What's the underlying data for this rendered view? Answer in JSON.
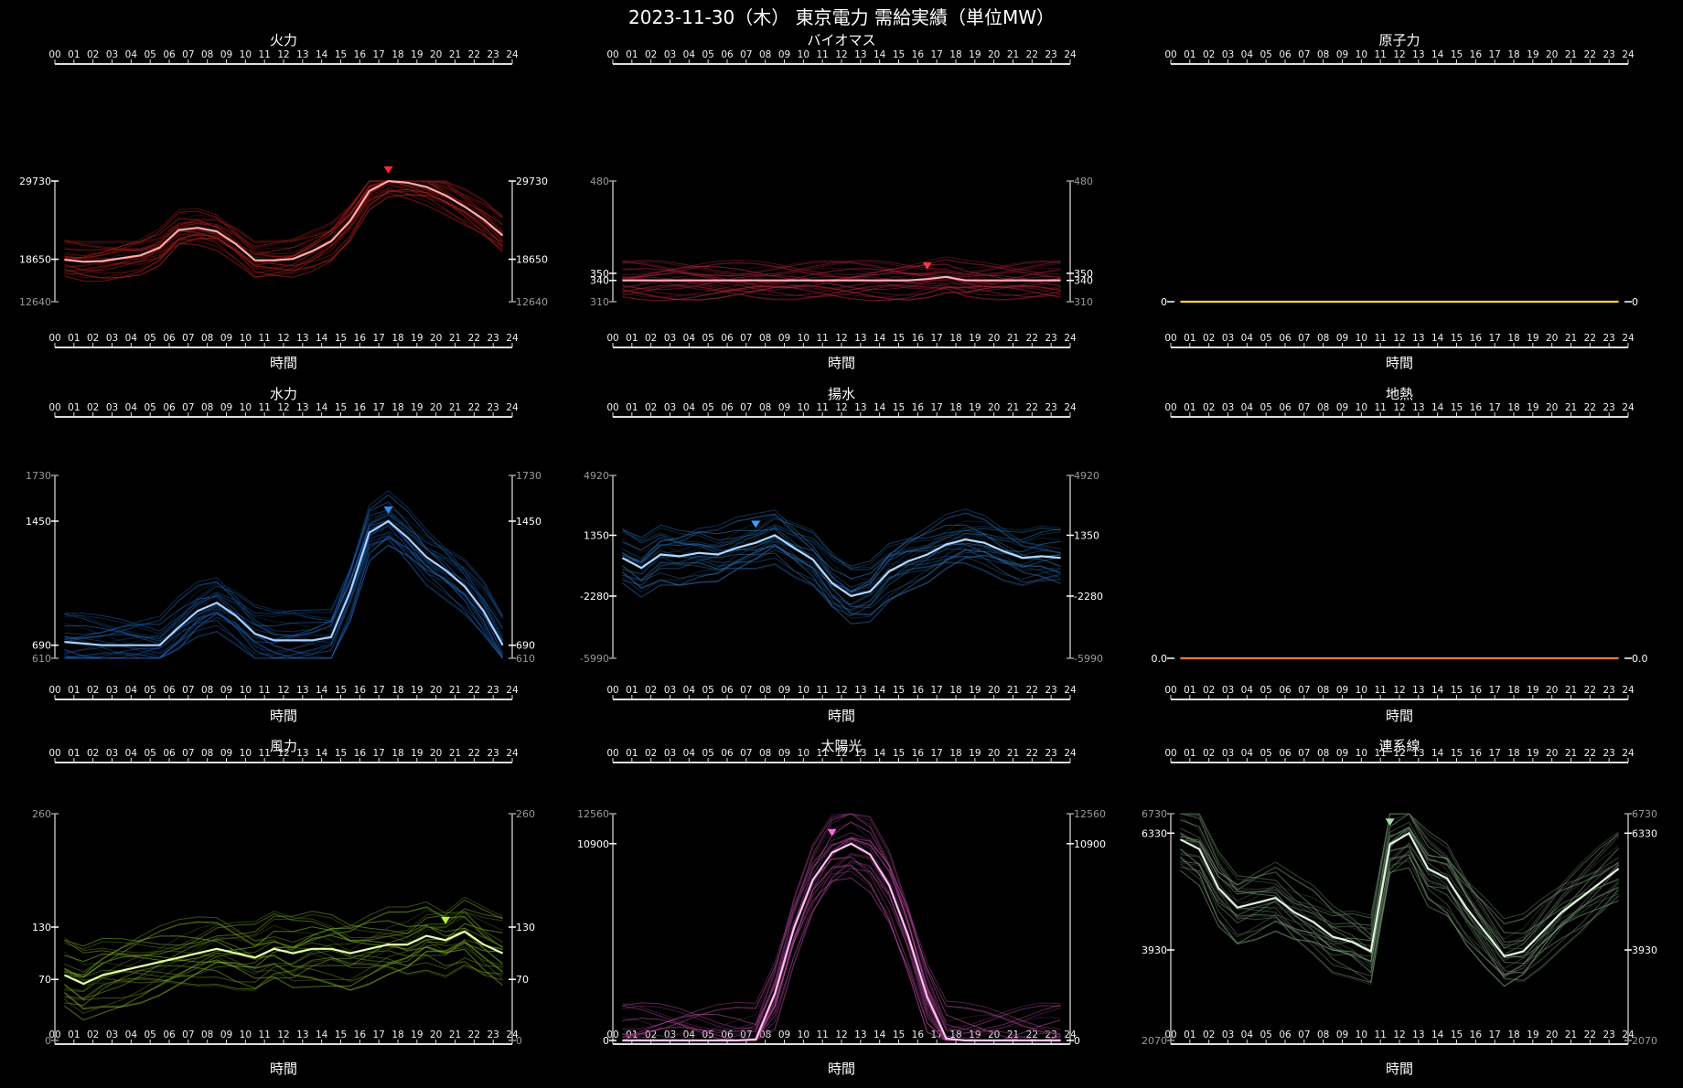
{
  "title": "2023-11-30（木） 東京電力 需給実績（単位MW）",
  "hours": [
    "00",
    "01",
    "02",
    "03",
    "04",
    "05",
    "06",
    "07",
    "08",
    "09",
    "10",
    "11",
    "12",
    "13",
    "14",
    "15",
    "16",
    "17",
    "18",
    "19",
    "20",
    "21",
    "22",
    "23",
    "24"
  ],
  "x_axis_label": "時間",
  "chart_data": [
    {
      "type": "line",
      "title": "火力",
      "color": "#ff2a2a",
      "ylim": [
        12640,
        29730
      ],
      "y_ticks": [
        {
          "v": 29730,
          "label": "29730",
          "main": true
        },
        {
          "v": 18650,
          "label": "18650",
          "main": true
        },
        {
          "v": 12640,
          "label": "12640",
          "main": false
        }
      ],
      "marker_hour": 17.5,
      "highlight": [
        18600,
        18300,
        18400,
        18800,
        19200,
        20300,
        22800,
        23100,
        22600,
        20800,
        18500,
        18500,
        18700,
        19800,
        21200,
        24100,
        28300,
        29730,
        29500,
        28900,
        27700,
        26100,
        24300,
        22000
      ]
    },
    {
      "type": "line",
      "title": "バイオマス",
      "color": "#ff3355",
      "ylim": [
        310,
        480
      ],
      "y_ticks": [
        {
          "v": 480,
          "label": "480",
          "main": false
        },
        {
          "v": 350,
          "label": "350",
          "main": true
        },
        {
          "v": 340,
          "label": "340",
          "main": true
        },
        {
          "v": 310,
          "label": "310",
          "main": false
        }
      ],
      "marker_hour": 16.5,
      "highlight": [
        340,
        340,
        340,
        340,
        340,
        340,
        340,
        340,
        340,
        340,
        340,
        340,
        340,
        340,
        340,
        340,
        342,
        345,
        340,
        340,
        340,
        340,
        340,
        340
      ]
    },
    {
      "type": "line",
      "title": "原子力",
      "color": "#ffd040",
      "ylim": [
        0,
        1
      ],
      "y_ticks": [
        {
          "v": 0,
          "label": "0",
          "main": true
        }
      ],
      "marker_hour": null,
      "highlight": [
        0,
        0,
        0,
        0,
        0,
        0,
        0,
        0,
        0,
        0,
        0,
        0,
        0,
        0,
        0,
        0,
        0,
        0,
        0,
        0,
        0,
        0,
        0,
        0
      ]
    },
    {
      "type": "line",
      "title": "水力",
      "color": "#2b8cff",
      "ylim": [
        610,
        1730
      ],
      "y_ticks": [
        {
          "v": 1730,
          "label": "1730",
          "main": false
        },
        {
          "v": 1450,
          "label": "1450",
          "main": true
        },
        {
          "v": 690,
          "label": "690",
          "main": true
        },
        {
          "v": 610,
          "label": "610",
          "main": false
        }
      ],
      "marker_hour": 17.5,
      "highlight": [
        710,
        700,
        690,
        690,
        690,
        690,
        800,
        900,
        950,
        870,
        760,
        720,
        720,
        720,
        740,
        1020,
        1380,
        1450,
        1350,
        1230,
        1150,
        1050,
        900,
        690
      ]
    },
    {
      "type": "line",
      "title": "揚水",
      "color": "#3aa0ff",
      "ylim": [
        -5990,
        4920
      ],
      "y_ticks": [
        {
          "v": 4920,
          "label": "4920",
          "main": false
        },
        {
          "v": 1350,
          "label": "1350",
          "main": true
        },
        {
          "v": -2280,
          "label": "-2280",
          "main": true
        },
        {
          "v": -5990,
          "label": "-5990",
          "main": false
        }
      ],
      "marker_hour": 7.5,
      "highlight": [
        0,
        -600,
        200,
        100,
        300,
        200,
        600,
        900,
        1350,
        600,
        -100,
        -1500,
        -2280,
        -2000,
        -800,
        -200,
        200,
        800,
        1100,
        900,
        400,
        0,
        100,
        0
      ]
    },
    {
      "type": "line",
      "title": "地熱",
      "color": "#ff7a30",
      "ylim": [
        0,
        1
      ],
      "y_ticks": [
        {
          "v": 0,
          "label": "0.0",
          "main": true
        }
      ],
      "marker_hour": null,
      "highlight": [
        0,
        0,
        0,
        0,
        0,
        0,
        0,
        0,
        0,
        0,
        0,
        0,
        0,
        0,
        0,
        0,
        0,
        0,
        0,
        0,
        0,
        0,
        0,
        0
      ]
    },
    {
      "type": "line",
      "title": "風力",
      "color": "#b8ff30",
      "ylim": [
        0,
        260
      ],
      "y_ticks": [
        {
          "v": 260,
          "label": "260",
          "main": false
        },
        {
          "v": 130,
          "label": "130",
          "main": true
        },
        {
          "v": 70,
          "label": "70",
          "main": true
        },
        {
          "v": 0,
          "label": "0",
          "main": false
        }
      ],
      "marker_hour": 20.5,
      "highlight": [
        75,
        65,
        75,
        80,
        85,
        90,
        95,
        100,
        105,
        100,
        95,
        105,
        100,
        105,
        105,
        100,
        105,
        110,
        110,
        120,
        115,
        125,
        110,
        100
      ]
    },
    {
      "type": "line",
      "title": "太陽光",
      "color": "#ff66dd",
      "ylim": [
        0,
        12560
      ],
      "y_ticks": [
        {
          "v": 12560,
          "label": "12560",
          "main": false
        },
        {
          "v": 10900,
          "label": "10900",
          "main": true
        },
        {
          "v": 0,
          "label": "0",
          "main": true
        }
      ],
      "marker_hour": 11.5,
      "highlight": [
        0,
        0,
        0,
        0,
        0,
        0,
        0,
        50,
        2600,
        6200,
        8900,
        10400,
        10900,
        10300,
        8600,
        5800,
        2400,
        100,
        0,
        0,
        0,
        0,
        0,
        0
      ]
    },
    {
      "type": "line",
      "title": "連系線",
      "color": "#aaddaa",
      "ylim": [
        2070,
        6730
      ],
      "y_ticks": [
        {
          "v": 6730,
          "label": "6730",
          "main": false
        },
        {
          "v": 6330,
          "label": "6330",
          "main": true
        },
        {
          "v": 3930,
          "label": "3930",
          "main": true
        },
        {
          "v": 2070,
          "label": "2070",
          "main": false
        }
      ],
      "marker_hour": 11.5,
      "highlight": [
        6200,
        6000,
        5200,
        4800,
        4900,
        5000,
        4700,
        4500,
        4200,
        4100,
        3900,
        6100,
        6330,
        5600,
        5400,
        4800,
        4300,
        3800,
        3900,
        4300,
        4700,
        5000,
        5300,
        5600
      ]
    }
  ]
}
